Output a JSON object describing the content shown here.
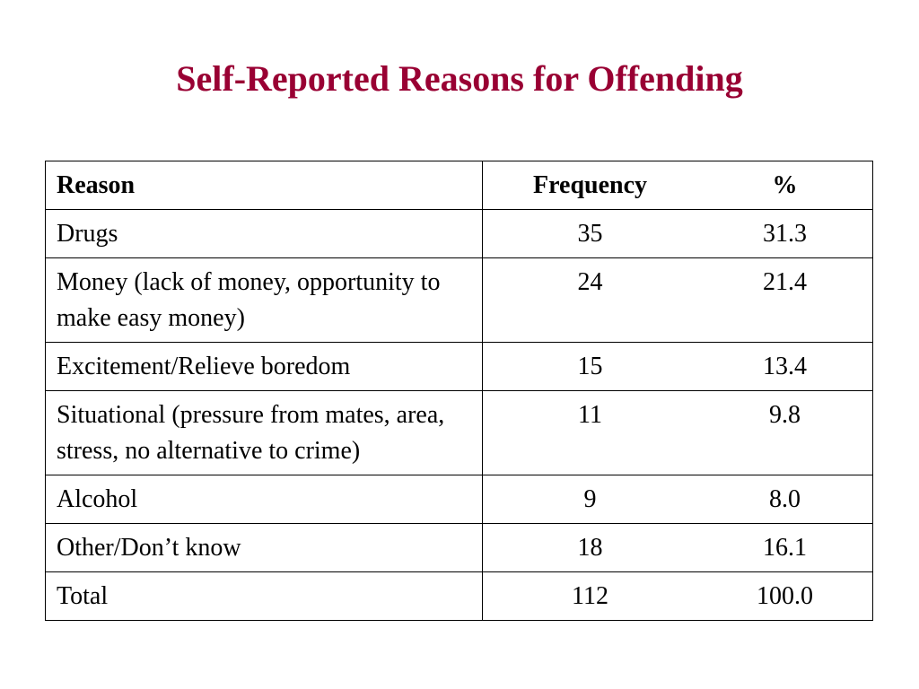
{
  "title": "Self-Reported Reasons for Offending",
  "table": {
    "headers": {
      "reason": "Reason",
      "frequency": "Frequency",
      "percent": "%"
    },
    "rows": [
      {
        "reason": "Drugs",
        "frequency": "35",
        "percent": "31.3"
      },
      {
        "reason": "Money (lack of money, opportunity to make easy money)",
        "frequency": "24",
        "percent": "21.4"
      },
      {
        "reason": "Excitement/Relieve boredom",
        "frequency": "15",
        "percent": "13.4"
      },
      {
        "reason": "Situational (pressure from mates, area, stress, no alternative to crime)",
        "frequency": "11",
        "percent": "9.8"
      },
      {
        "reason": "Alcohol",
        "frequency": "9",
        "percent": "8.0"
      },
      {
        "reason": "Other/Don’t know",
        "frequency": "18",
        "percent": "16.1"
      },
      {
        "reason": "Total",
        "frequency": "112",
        "percent": "100.0"
      }
    ]
  },
  "colors": {
    "title": "#990033",
    "text": "#000000",
    "background": "#ffffff"
  }
}
